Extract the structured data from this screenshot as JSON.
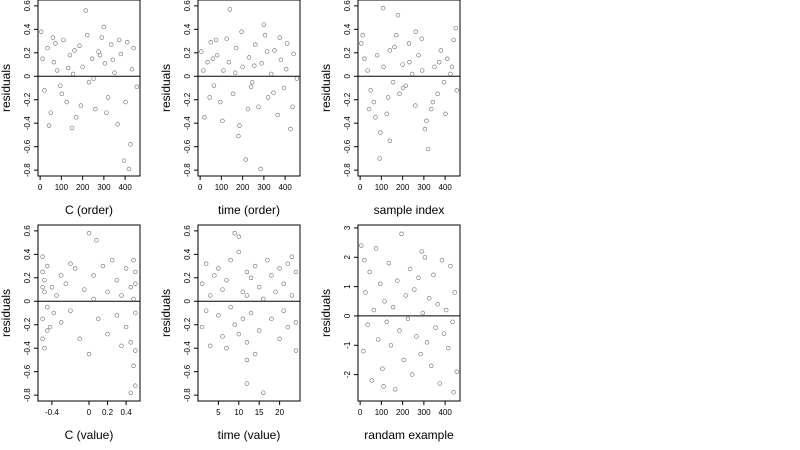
{
  "chart_data": [
    {
      "type": "scatter",
      "xlabel": "C (order)",
      "ylabel": "residuals",
      "xlim": [
        -10,
        470
      ],
      "ylim": [
        -0.85,
        0.65
      ],
      "xticks": [
        0,
        100,
        200,
        300,
        400
      ],
      "yticks": [
        -0.8,
        -0.6,
        -0.4,
        -0.2,
        0.0,
        0.2,
        0.4,
        0.6
      ],
      "hline": 0,
      "points": [
        [
          5,
          0.38
        ],
        [
          20,
          -0.12
        ],
        [
          35,
          0.24
        ],
        [
          50,
          -0.31
        ],
        [
          65,
          0.12
        ],
        [
          80,
          0.05
        ],
        [
          95,
          -0.08
        ],
        [
          110,
          0.31
        ],
        [
          125,
          -0.22
        ],
        [
          140,
          0.18
        ],
        [
          155,
          0.02
        ],
        [
          170,
          -0.35
        ],
        [
          185,
          0.26
        ],
        [
          200,
          0.08
        ],
        [
          215,
          0.56
        ],
        [
          230,
          -0.05
        ],
        [
          245,
          0.15
        ],
        [
          260,
          -0.28
        ],
        [
          275,
          0.21
        ],
        [
          290,
          0.33
        ],
        [
          305,
          0.11
        ],
        [
          320,
          -0.18
        ],
        [
          335,
          0.27
        ],
        [
          350,
          0.03
        ],
        [
          365,
          -0.41
        ],
        [
          380,
          0.19
        ],
        [
          395,
          -0.72
        ],
        [
          410,
          0.29
        ],
        [
          425,
          -0.58
        ],
        [
          440,
          0.24
        ],
        [
          455,
          -0.09
        ],
        [
          12,
          0.15
        ],
        [
          42,
          -0.42
        ],
        [
          72,
          0.28
        ],
        [
          102,
          -0.15
        ],
        [
          132,
          0.07
        ],
        [
          162,
          0.22
        ],
        [
          192,
          -0.25
        ],
        [
          222,
          0.35
        ],
        [
          252,
          -0.02
        ],
        [
          282,
          0.18
        ],
        [
          312,
          -0.31
        ],
        [
          342,
          0.14
        ],
        [
          372,
          0.31
        ],
        [
          402,
          -0.22
        ],
        [
          432,
          0.06
        ],
        [
          418,
          -0.79
        ],
        [
          300,
          0.42
        ],
        [
          150,
          -0.44
        ],
        [
          60,
          0.33
        ]
      ]
    },
    {
      "type": "scatter",
      "xlabel": "time (order)",
      "ylabel": "residuals",
      "xlim": [
        -10,
        470
      ],
      "ylim": [
        -0.85,
        0.65
      ],
      "xticks": [
        0,
        100,
        200,
        300,
        400
      ],
      "yticks": [
        -0.8,
        -0.6,
        -0.4,
        -0.2,
        0.0,
        0.2,
        0.4,
        0.6
      ],
      "hline": 0,
      "points": [
        [
          5,
          0.21
        ],
        [
          20,
          -0.35
        ],
        [
          35,
          0.12
        ],
        [
          50,
          0.29
        ],
        [
          65,
          -0.08
        ],
        [
          80,
          0.18
        ],
        [
          95,
          -0.22
        ],
        [
          110,
          0.05
        ],
        [
          125,
          0.32
        ],
        [
          140,
          0.57
        ],
        [
          155,
          -0.15
        ],
        [
          170,
          0.24
        ],
        [
          185,
          -0.42
        ],
        [
          200,
          0.08
        ],
        [
          215,
          -0.71
        ],
        [
          230,
          0.16
        ],
        [
          245,
          -0.05
        ],
        [
          260,
          0.27
        ],
        [
          275,
          -0.26
        ],
        [
          290,
          0.11
        ],
        [
          305,
          0.35
        ],
        [
          320,
          -0.18
        ],
        [
          335,
          0.02
        ],
        [
          350,
          0.22
        ],
        [
          365,
          -0.33
        ],
        [
          380,
          0.14
        ],
        [
          395,
          -0.1
        ],
        [
          410,
          0.28
        ],
        [
          425,
          -0.45
        ],
        [
          440,
          0.19
        ],
        [
          455,
          -0.02
        ],
        [
          15,
          0.05
        ],
        [
          45,
          -0.18
        ],
        [
          75,
          0.31
        ],
        [
          105,
          -0.38
        ],
        [
          135,
          0.12
        ],
        [
          165,
          0.03
        ],
        [
          195,
          0.38
        ],
        [
          225,
          -0.28
        ],
        [
          255,
          0.09
        ],
        [
          285,
          -0.79
        ],
        [
          315,
          0.21
        ],
        [
          345,
          -0.14
        ],
        [
          375,
          0.33
        ],
        [
          405,
          0.06
        ],
        [
          435,
          -0.26
        ],
        [
          300,
          0.44
        ],
        [
          180,
          -0.51
        ],
        [
          60,
          0.15
        ],
        [
          240,
          -0.09
        ]
      ]
    },
    {
      "type": "scatter",
      "xlabel": "sample index",
      "ylabel": "residuals",
      "xlim": [
        -10,
        470
      ],
      "ylim": [
        -0.85,
        0.65
      ],
      "xticks": [
        0,
        100,
        200,
        300,
        400
      ],
      "yticks": [
        -0.8,
        -0.6,
        -0.4,
        -0.2,
        0.0,
        0.2,
        0.4,
        0.6
      ],
      "hline": 0,
      "points": [
        [
          5,
          0.28
        ],
        [
          20,
          0.15
        ],
        [
          35,
          0.05
        ],
        [
          50,
          -0.12
        ],
        [
          65,
          -0.22
        ],
        [
          80,
          0.18
        ],
        [
          95,
          -0.48
        ],
        [
          110,
          0.08
        ],
        [
          125,
          -0.32
        ],
        [
          140,
          0.22
        ],
        [
          155,
          -0.05
        ],
        [
          170,
          0.35
        ],
        [
          185,
          -0.15
        ],
        [
          200,
          0.1
        ],
        [
          215,
          -0.08
        ],
        [
          230,
          0.28
        ],
        [
          245,
          0.02
        ],
        [
          260,
          -0.25
        ],
        [
          275,
          0.18
        ],
        [
          290,
          0.32
        ],
        [
          305,
          -0.45
        ],
        [
          320,
          -0.62
        ],
        [
          335,
          -0.28
        ],
        [
          350,
          0.08
        ],
        [
          365,
          -0.15
        ],
        [
          380,
          0.22
        ],
        [
          395,
          -0.05
        ],
        [
          410,
          0.15
        ],
        [
          425,
          0.02
        ],
        [
          440,
          0.31
        ],
        [
          455,
          -0.12
        ],
        [
          12,
          0.35
        ],
        [
          42,
          -0.28
        ],
        [
          72,
          -0.35
        ],
        [
          92,
          -0.7
        ],
        [
          108,
          0.58
        ],
        [
          132,
          -0.18
        ],
        [
          162,
          0.25
        ],
        [
          178,
          0.52
        ],
        [
          202,
          -0.1
        ],
        [
          232,
          0.12
        ],
        [
          262,
          0.38
        ],
        [
          292,
          0.05
        ],
        [
          312,
          -0.38
        ],
        [
          342,
          -0.22
        ],
        [
          372,
          0.12
        ],
        [
          402,
          -0.32
        ],
        [
          432,
          0.08
        ],
        [
          450,
          0.41
        ],
        [
          140,
          -0.55
        ]
      ]
    },
    {
      "type": "scatter",
      "xlabel": "C (value)",
      "ylabel": "residuals",
      "xlim": [
        -0.55,
        0.55
      ],
      "ylim": [
        -0.85,
        0.65
      ],
      "xticks": [
        -0.4,
        0.0,
        0.2,
        0.4
      ],
      "yticks": [
        -0.8,
        -0.6,
        -0.4,
        -0.2,
        0.0,
        0.2,
        0.4,
        0.6
      ],
      "hline": 0,
      "points": [
        [
          -0.5,
          0.38
        ],
        [
          -0.5,
          0.12
        ],
        [
          -0.5,
          -0.15
        ],
        [
          -0.5,
          -0.32
        ],
        [
          -0.5,
          0.25
        ],
        [
          -0.48,
          0.08
        ],
        [
          -0.48,
          -0.4
        ],
        [
          -0.48,
          0.18
        ],
        [
          -0.45,
          -0.05
        ],
        [
          -0.45,
          0.3
        ],
        [
          -0.42,
          -0.22
        ],
        [
          -0.4,
          0.12
        ],
        [
          -0.38,
          -0.1
        ],
        [
          -0.35,
          0.05
        ],
        [
          -0.3,
          0.22
        ],
        [
          -0.3,
          -0.18
        ],
        [
          -0.25,
          0.15
        ],
        [
          -0.2,
          -0.08
        ],
        [
          -0.15,
          0.28
        ],
        [
          -0.1,
          -0.32
        ],
        [
          -0.05,
          0.1
        ],
        [
          0.0,
          -0.45
        ],
        [
          0.0,
          0.58
        ],
        [
          0.05,
          0.02
        ],
        [
          0.05,
          0.22
        ],
        [
          0.1,
          -0.15
        ],
        [
          0.15,
          0.3
        ],
        [
          0.2,
          -0.28
        ],
        [
          0.2,
          0.08
        ],
        [
          0.25,
          0.35
        ],
        [
          0.3,
          -0.12
        ],
        [
          0.3,
          0.18
        ],
        [
          0.35,
          0.05
        ],
        [
          0.4,
          -0.22
        ],
        [
          0.4,
          0.28
        ],
        [
          0.45,
          0.12
        ],
        [
          0.45,
          -0.35
        ],
        [
          0.45,
          -0.78
        ],
        [
          0.48,
          0.02
        ],
        [
          0.48,
          -0.55
        ],
        [
          0.5,
          0.25
        ],
        [
          0.5,
          -0.1
        ],
        [
          0.5,
          -0.42
        ],
        [
          0.5,
          -0.72
        ],
        [
          0.5,
          0.15
        ],
        [
          0.08,
          0.52
        ],
        [
          -0.2,
          0.32
        ],
        [
          0.35,
          -0.38
        ],
        [
          -0.45,
          -0.25
        ],
        [
          0.48,
          0.35
        ]
      ]
    },
    {
      "type": "scatter",
      "xlabel": "time (value)",
      "ylabel": "residuals",
      "xlim": [
        0,
        25
      ],
      "ylim": [
        -0.85,
        0.65
      ],
      "xticks": [
        5,
        10,
        15,
        20
      ],
      "yticks": [
        -0.8,
        -0.6,
        -0.4,
        -0.2,
        0.0,
        0.2,
        0.4,
        0.6
      ],
      "hline": 0,
      "points": [
        [
          1,
          0.15
        ],
        [
          1,
          -0.22
        ],
        [
          2,
          0.32
        ],
        [
          2,
          -0.08
        ],
        [
          3,
          0.05
        ],
        [
          3,
          -0.38
        ],
        [
          4,
          0.22
        ],
        [
          5,
          -0.12
        ],
        [
          5,
          0.28
        ],
        [
          6,
          0.1
        ],
        [
          6,
          -0.3
        ],
        [
          7,
          0.18
        ],
        [
          8,
          -0.05
        ],
        [
          8,
          0.35
        ],
        [
          9,
          -0.2
        ],
        [
          10,
          0.42
        ],
        [
          10,
          0.55
        ],
        [
          10,
          -0.28
        ],
        [
          11,
          0.08
        ],
        [
          11,
          -0.15
        ],
        [
          12,
          0.25
        ],
        [
          12,
          0.05
        ],
        [
          12,
          -0.35
        ],
        [
          12,
          -0.5
        ],
        [
          12,
          -0.7
        ],
        [
          13,
          0.2
        ],
        [
          13,
          -0.1
        ],
        [
          14,
          0.3
        ],
        [
          15,
          -0.25
        ],
        [
          15,
          0.12
        ],
        [
          16,
          -0.78
        ],
        [
          16,
          0.02
        ],
        [
          17,
          0.35
        ],
        [
          18,
          -0.15
        ],
        [
          18,
          0.22
        ],
        [
          19,
          0.08
        ],
        [
          20,
          -0.32
        ],
        [
          20,
          0.28
        ],
        [
          21,
          0.15
        ],
        [
          21,
          -0.08
        ],
        [
          22,
          0.32
        ],
        [
          22,
          -0.22
        ],
        [
          23,
          0.05
        ],
        [
          23,
          0.38
        ],
        [
          24,
          -0.18
        ],
        [
          24,
          0.25
        ],
        [
          24,
          -0.42
        ],
        [
          9,
          0.58
        ],
        [
          14,
          -0.45
        ],
        [
          7,
          -0.4
        ]
      ]
    },
    {
      "type": "scatter",
      "xlabel": "randam example",
      "ylabel": "residuals",
      "xlim": [
        -10,
        470
      ],
      "ylim": [
        -2.9,
        3.1
      ],
      "xticks": [
        0,
        100,
        200,
        300,
        400
      ],
      "yticks": [
        -2,
        -1,
        0,
        1,
        2,
        3
      ],
      "hline": 0,
      "points": [
        [
          5,
          2.4
        ],
        [
          15,
          -1.2
        ],
        [
          25,
          0.8
        ],
        [
          35,
          -0.3
        ],
        [
          45,
          1.5
        ],
        [
          55,
          -2.2
        ],
        [
          65,
          0.2
        ],
        [
          75,
          2.3
        ],
        [
          85,
          -0.8
        ],
        [
          95,
          1.1
        ],
        [
          105,
          -1.8
        ],
        [
          115,
          0.5
        ],
        [
          125,
          -0.2
        ],
        [
          135,
          1.8
        ],
        [
          145,
          -1.0
        ],
        [
          155,
          0.3
        ],
        [
          165,
          -2.5
        ],
        [
          175,
          1.2
        ],
        [
          185,
          -0.5
        ],
        [
          195,
          2.8
        ],
        [
          205,
          -1.5
        ],
        [
          215,
          0.7
        ],
        [
          225,
          -0.1
        ],
        [
          235,
          1.6
        ],
        [
          245,
          -2.0
        ],
        [
          255,
          0.9
        ],
        [
          265,
          -0.7
        ],
        [
          275,
          1.3
        ],
        [
          285,
          -1.3
        ],
        [
          295,
          0.1
        ],
        [
          305,
          2.0
        ],
        [
          315,
          -0.9
        ],
        [
          325,
          0.6
        ],
        [
          335,
          -1.7
        ],
        [
          345,
          1.4
        ],
        [
          355,
          -0.4
        ],
        [
          365,
          0.4
        ],
        [
          375,
          -2.3
        ],
        [
          385,
          1.9
        ],
        [
          395,
          -0.6
        ],
        [
          405,
          0.2
        ],
        [
          415,
          -1.1
        ],
        [
          425,
          1.7
        ],
        [
          435,
          -0.2
        ],
        [
          445,
          0.8
        ],
        [
          455,
          -1.9
        ],
        [
          20,
          1.9
        ],
        [
          110,
          -2.4
        ],
        [
          290,
          2.2
        ],
        [
          440,
          -2.6
        ]
      ]
    }
  ]
}
